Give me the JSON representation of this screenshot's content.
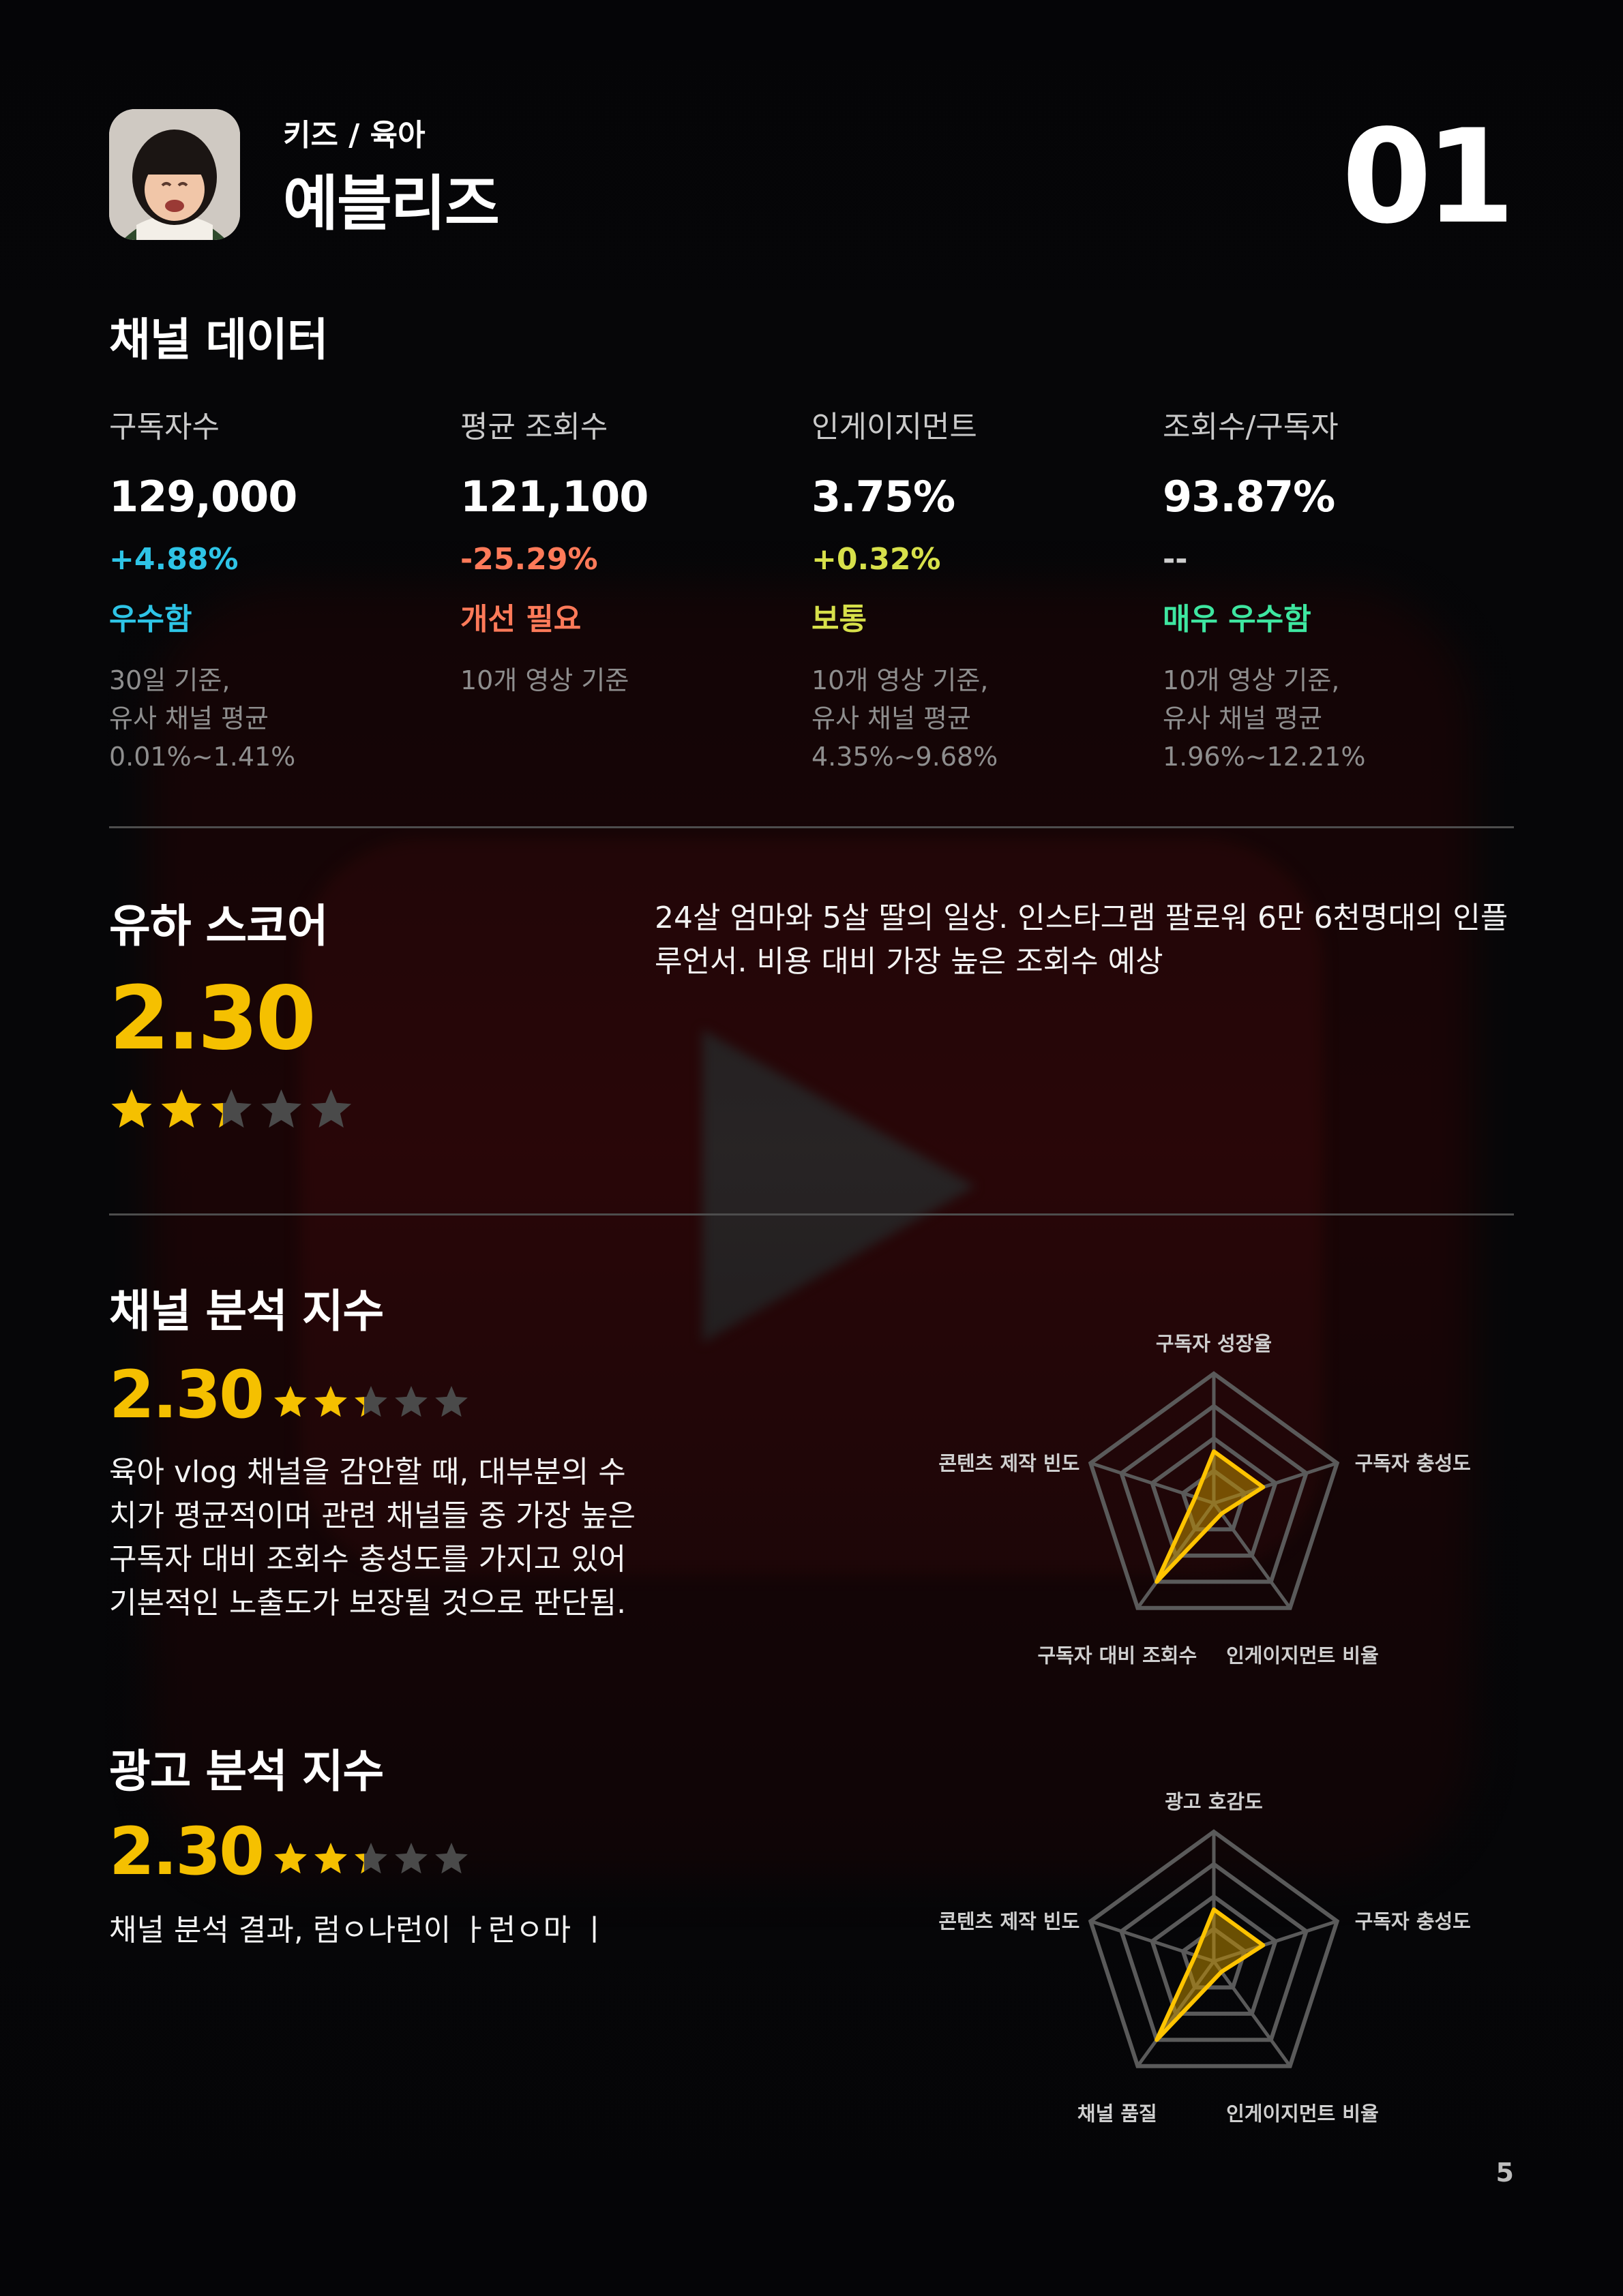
{
  "header": {
    "category": "키즈 / 육아",
    "channel_name": "예블리즈",
    "rank": "01"
  },
  "channel_data": {
    "title": "채널 데이터",
    "stats": [
      {
        "label": "구독자수",
        "value": "129,000",
        "change": "+4.88%",
        "change_color": "#2ec4e6",
        "rating": "우수함",
        "rating_color": "#2ec4e6",
        "note": "30일 기준,\n유사 채널 평균\n0.01%~1.41%"
      },
      {
        "label": "평균 조회수",
        "value": "121,100",
        "change": "-25.29%",
        "change_color": "#ff7a59",
        "rating": "개선 필요",
        "rating_color": "#ff7a59",
        "note": "10개 영상 기준"
      },
      {
        "label": "인게이지먼트",
        "value": "3.75%",
        "change": "+0.32%",
        "change_color": "#d7e04a",
        "rating": "보통",
        "rating_color": "#d7e04a",
        "note": "10개 영상 기준,\n유사 채널 평균\n4.35%~9.68%"
      },
      {
        "label": "조회수/구독자",
        "value": "93.87%",
        "change": "--",
        "change_color": "#cfcfcf",
        "rating": "매우 우수함",
        "rating_color": "#3ee6a0",
        "note": "10개 영상 기준,\n유사 채널 평균\n1.96%~12.21%"
      }
    ]
  },
  "yuha_score": {
    "title": "유하 스코어",
    "score": "2.30",
    "stars": 2.3,
    "description": "24살 엄마와 5살 딸의 일상. 인스타그램 팔로워 6만 6천명대의 인플루언서. 비용 대비 가장 높은 조회수 예상"
  },
  "channel_analysis": {
    "title": "채널 분석 지수",
    "score": "2.30",
    "stars": 2.3,
    "description": "육아 vlog 채널을 감안할 때, 대부분의 수치가 평균적이며 관련 채널들 중 가장 높은 구독자 대비 조회수 충성도를 가지고 있어 기본적인 노출도가 보장될 것으로 판단됨.",
    "radar": {
      "axes": [
        "구독자 성장율",
        "구독자 충성도",
        "인게이지먼트 비율",
        "구독자 대비 조회수",
        "콘텐츠 제작 빈도"
      ],
      "values": [
        0.4,
        0.4,
        0.1,
        0.75,
        0.15
      ],
      "max": 1
    }
  },
  "ad_analysis": {
    "title": "광고 분석 지수",
    "score": "2.30",
    "stars": 2.3,
    "description": "채널 분석 결과, 럼ㅇ나런이 ㅏ런ㅇ마 ㅣ",
    "radar": {
      "axes": [
        "광고 호감도",
        "구독자 충성도",
        "인게이지먼트 비율",
        "채널 품질",
        "콘텐츠 제작 빈도"
      ],
      "values": [
        0.4,
        0.4,
        0.1,
        0.75,
        0.15
      ],
      "max": 1
    }
  },
  "colors": {
    "accent": "#f5c000",
    "star_empty": "#4a4a4a"
  },
  "page_number": "5"
}
